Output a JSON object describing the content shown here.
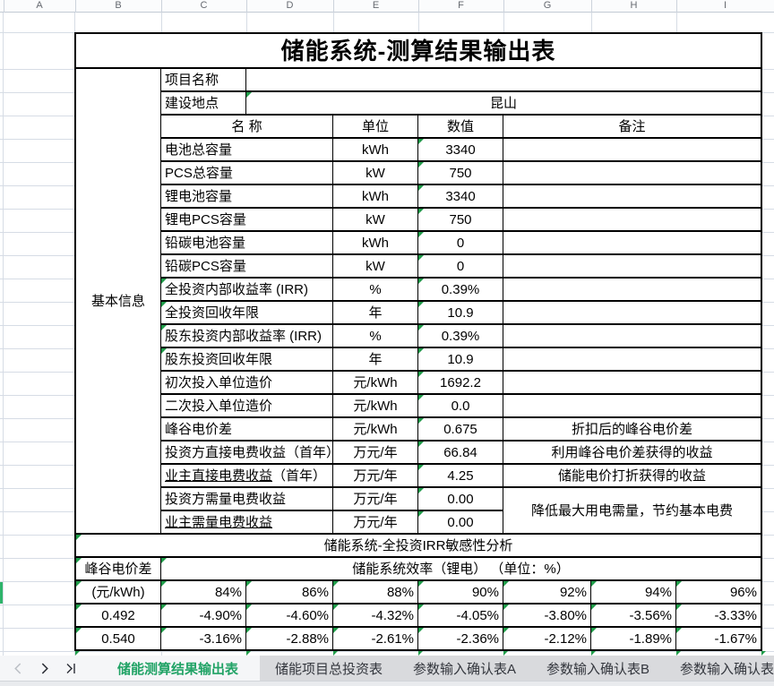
{
  "colors": {
    "accent_green": "#21a366",
    "tri_green": "#1f9c49",
    "ind_green": "#2eb36a",
    "grid_line": "#d6dce5",
    "tabbar_bg": "#d9dadd",
    "tab_active_bg": "#f5f6f8"
  },
  "grid": {
    "column_letters": [
      "A",
      "B",
      "C",
      "D",
      "E",
      "F",
      "G",
      "H",
      "I"
    ]
  },
  "table": {
    "title": "储能系统-测算结果输出表",
    "section_label": "基本信息",
    "project_name_label": "项目名称",
    "project_name_value": "",
    "location_label": "建设地点",
    "location_value": "昆山",
    "headers": {
      "name": "名 称",
      "unit": "单位",
      "value": "数值",
      "remark": "备注"
    },
    "rows": [
      {
        "name": "电池总容量",
        "unit": "kWh",
        "value": "3340",
        "remark": ""
      },
      {
        "name": "PCS总容量",
        "unit": "kW",
        "value": "750",
        "remark": ""
      },
      {
        "name": "锂电池容量",
        "unit": "kWh",
        "value": "3340",
        "remark": ""
      },
      {
        "name": "锂电PCS容量",
        "unit": "kW",
        "value": "750",
        "remark": ""
      },
      {
        "name": "铅碳电池容量",
        "unit": "kWh",
        "value": "0",
        "remark": ""
      },
      {
        "name": "铅碳PCS容量",
        "unit": "kW",
        "value": "0",
        "remark": ""
      },
      {
        "name": "全投资内部收益率 (IRR)",
        "unit": "%",
        "value": "0.39%",
        "remark": "",
        "name_gt": true
      },
      {
        "name": "全投资回收年限",
        "unit": "年",
        "value": "10.9",
        "remark": "",
        "name_gt": true
      },
      {
        "name": "股东投资内部收益率 (IRR)",
        "unit": "%",
        "value": "0.39%",
        "remark": "",
        "name_gt": true
      },
      {
        "name": "股东投资回收年限",
        "unit": "年",
        "value": "10.9",
        "remark": "",
        "name_gt": true
      },
      {
        "name": "初次投入单位造价",
        "unit": "元/kWh",
        "value": "1692.2",
        "remark": ""
      },
      {
        "name": "二次投入单位造价",
        "unit": "元/kWh",
        "value": "0.0",
        "remark": ""
      },
      {
        "name": "峰谷电价差",
        "unit": "元/kWh",
        "value": "0.675",
        "remark": "折扣后的峰谷电价差"
      },
      {
        "name": "投资方直接电费收益（首年）",
        "unit": "万元/年",
        "value": "66.84",
        "remark": "利用峰谷电价差获得的收益"
      },
      {
        "name": "业主直接电费收益（首年）",
        "name_main": "业主直接电费收益",
        "name_rest": "（首年）",
        "unit": "万元/年",
        "value": "4.25",
        "remark": "储能电价打折获得的收益"
      },
      {
        "name": "投资方需量电费收益",
        "unit": "万元/年",
        "value": "0.00",
        "remark": "降低最大用电需量，节约基本电费",
        "remark_rowspan": 2
      },
      {
        "name": "业主需量电费收益",
        "name_main": "业主需量电费收益",
        "name_rest": "",
        "unit": "万元/年",
        "value": "0.00",
        "remark": null
      }
    ]
  },
  "sensitivity": {
    "title": "储能系统-全投资IRR敏感性分析",
    "row_header_label": "峰谷电价差",
    "row_header_unit": "(元/kWh)",
    "col_header_label": "储能系统效率（锂电） （单位：%）",
    "efficiencies": [
      "84%",
      "86%",
      "88%",
      "90%",
      "92%",
      "94%",
      "96%"
    ],
    "rows": [
      {
        "price": "0.492",
        "values": [
          "-4.90%",
          "-4.60%",
          "-4.32%",
          "-4.05%",
          "-3.80%",
          "-3.56%",
          "-3.33%"
        ]
      },
      {
        "price": "0.540",
        "values": [
          "-3.16%",
          "-2.88%",
          "-2.61%",
          "-2.36%",
          "-2.12%",
          "-1.89%",
          "-1.67%"
        ]
      }
    ]
  },
  "tab_bar": {
    "nav_icons": [
      "prev-sheet-icon",
      "next-sheet-icon",
      "last-sheet-icon"
    ],
    "tabs": [
      {
        "label": "储能测算结果输出表",
        "active": true
      },
      {
        "label": "储能项目总投资表",
        "active": false
      },
      {
        "label": "参数输入确认表A",
        "active": false
      },
      {
        "label": "参数输入确认表B",
        "active": false
      },
      {
        "label": "参数输入确认表",
        "active": false
      }
    ]
  }
}
